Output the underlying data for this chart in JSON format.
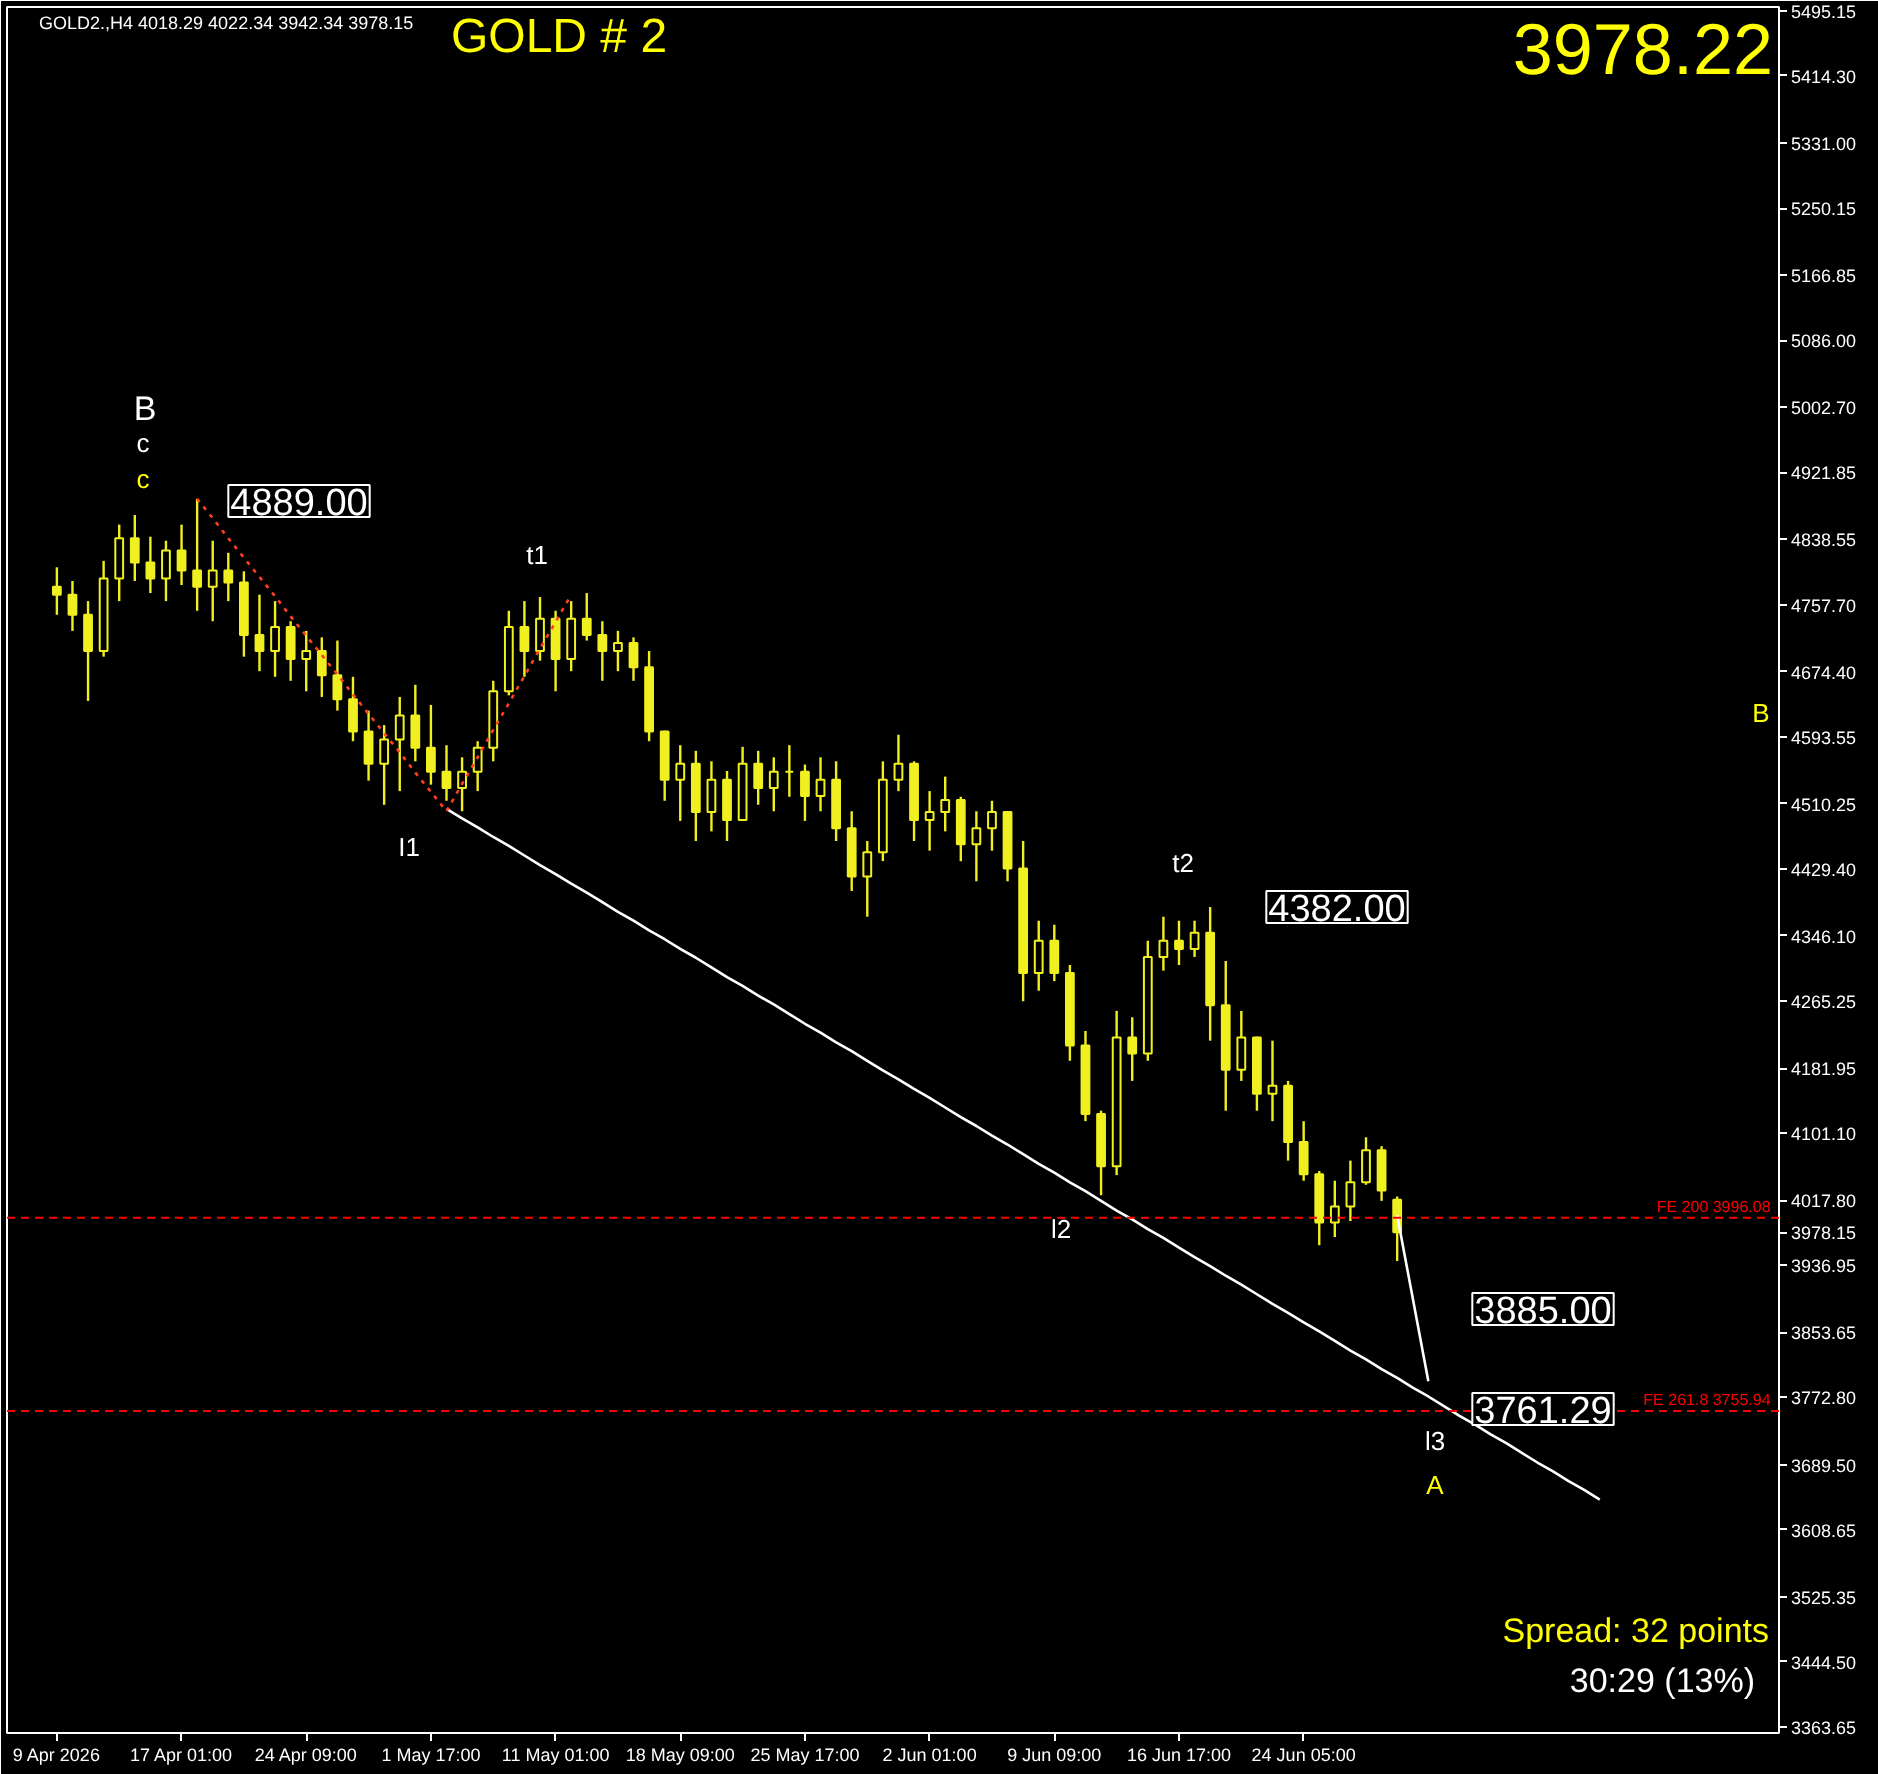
{
  "chart_data": {
    "type": "candlestick",
    "title": "GOLD # 2",
    "categories": [
      "9 Apr 2026",
      null,
      null,
      null,
      null,
      null,
      null,
      null,
      "17 Apr 01:00",
      null,
      null,
      null,
      null,
      null,
      null,
      null,
      "24 Apr 09:00",
      null,
      null,
      null,
      null,
      null,
      null,
      null,
      "1 May 17:00",
      null,
      null,
      null,
      null,
      null,
      null,
      null,
      "11 May 01:00",
      null,
      null,
      null,
      null,
      null,
      null,
      null,
      "18 May 09:00",
      null,
      null,
      null,
      null,
      null,
      null,
      null,
      "25 May 17:00",
      null,
      null,
      null,
      null,
      null,
      null,
      null,
      "2 Jun 01:00",
      null,
      null,
      null,
      null,
      null,
      null,
      null,
      "9 Jun 09:00",
      null,
      null,
      null,
      null,
      null,
      null,
      null,
      "16 Jun 17:00",
      null,
      null,
      null,
      null,
      null,
      null,
      null,
      "24 Jun 05:00",
      null,
      null,
      null,
      null,
      null,
      null,
      null,
      null,
      null,
      null,
      null,
      null,
      null,
      null,
      null,
      null,
      null,
      null,
      null,
      null,
      null,
      null,
      null,
      null,
      null,
      null,
      null,
      null,
      null,
      null
    ],
    "ohlc": [
      [
        4780,
        4804,
        4745,
        4770
      ],
      [
        4770,
        4787,
        4725,
        4745
      ],
      [
        4745,
        4762,
        4638,
        4700
      ],
      [
        4700,
        4812,
        4693,
        4790
      ],
      [
        4790,
        4857,
        4762,
        4840
      ],
      [
        4840,
        4869,
        4787,
        4810
      ],
      [
        4810,
        4842,
        4772,
        4790
      ],
      [
        4790,
        4837,
        4762,
        4825
      ],
      [
        4825,
        4857,
        4782,
        4800
      ],
      [
        4800,
        4889,
        4750,
        4780
      ],
      [
        4780,
        4837,
        4737,
        4800
      ],
      [
        4800,
        4822,
        4762,
        4785
      ],
      [
        4785,
        4799,
        4693,
        4720
      ],
      [
        4720,
        4770,
        4675,
        4700
      ],
      [
        4700,
        4762,
        4668,
        4730
      ],
      [
        4730,
        4737,
        4663,
        4690
      ],
      [
        4690,
        4725,
        4650,
        4700
      ],
      [
        4700,
        4717,
        4643,
        4670
      ],
      [
        4670,
        4713,
        4626,
        4640
      ],
      [
        4640,
        4668,
        4588,
        4600
      ],
      [
        4600,
        4626,
        4539,
        4560
      ],
      [
        4560,
        4608,
        4509,
        4590
      ],
      [
        4590,
        4643,
        4526,
        4620
      ],
      [
        4620,
        4658,
        4563,
        4580
      ],
      [
        4580,
        4633,
        4534,
        4550
      ],
      [
        4550,
        4583,
        4514,
        4530
      ],
      [
        4530,
        4568,
        4501,
        4550
      ],
      [
        4550,
        4588,
        4526,
        4580
      ],
      [
        4580,
        4663,
        4563,
        4650
      ],
      [
        4650,
        4750,
        4645,
        4730
      ],
      [
        4730,
        4762,
        4668,
        4700
      ],
      [
        4700,
        4767,
        4688,
        4740
      ],
      [
        4740,
        4750,
        4650,
        4690
      ],
      [
        4690,
        4762,
        4675,
        4740
      ],
      [
        4740,
        4772,
        4713,
        4720
      ],
      [
        4720,
        4737,
        4663,
        4700
      ],
      [
        4700,
        4725,
        4675,
        4710
      ],
      [
        4710,
        4717,
        4663,
        4680
      ],
      [
        4680,
        4700,
        4588,
        4600
      ],
      [
        4600,
        4601,
        4514,
        4540
      ],
      [
        4540,
        4583,
        4489,
        4560
      ],
      [
        4560,
        4576,
        4464,
        4500
      ],
      [
        4500,
        4563,
        4476,
        4540
      ],
      [
        4540,
        4551,
        4464,
        4490
      ],
      [
        4490,
        4581,
        4489,
        4560
      ],
      [
        4560,
        4576,
        4509,
        4530
      ],
      [
        4530,
        4568,
        4501,
        4550
      ],
      [
        4550,
        4583,
        4519,
        4550
      ],
      [
        4550,
        4559,
        4489,
        4520
      ],
      [
        4520,
        4568,
        4501,
        4540
      ],
      [
        4540,
        4563,
        4464,
        4480
      ],
      [
        4480,
        4501,
        4402,
        4420
      ],
      [
        4420,
        4464,
        4370,
        4450
      ],
      [
        4450,
        4563,
        4439,
        4540
      ],
      [
        4540,
        4596,
        4526,
        4560
      ],
      [
        4560,
        4563,
        4464,
        4490
      ],
      [
        4490,
        4526,
        4452,
        4500
      ],
      [
        4500,
        4544,
        4476,
        4515
      ],
      [
        4515,
        4519,
        4439,
        4460
      ],
      [
        4460,
        4501,
        4414,
        4480
      ],
      [
        4480,
        4514,
        4452,
        4500
      ],
      [
        4500,
        4501,
        4414,
        4430
      ],
      [
        4430,
        4464,
        4265,
        4300
      ],
      [
        4300,
        4365,
        4278,
        4340
      ],
      [
        4340,
        4360,
        4290,
        4300
      ],
      [
        4300,
        4310,
        4191,
        4210
      ],
      [
        4210,
        4228,
        4116,
        4125
      ],
      [
        4125,
        4129,
        4024,
        4060
      ],
      [
        4060,
        4253,
        4049,
        4220
      ],
      [
        4220,
        4245,
        4166,
        4200
      ],
      [
        4200,
        4340,
        4191,
        4320
      ],
      [
        4320,
        4370,
        4303,
        4340
      ],
      [
        4340,
        4365,
        4310,
        4330
      ],
      [
        4330,
        4365,
        4320,
        4350
      ],
      [
        4350,
        4382,
        4216,
        4260
      ],
      [
        4260,
        4315,
        4129,
        4180
      ],
      [
        4180,
        4253,
        4166,
        4220
      ],
      [
        4220,
        4221,
        4129,
        4150
      ],
      [
        4150,
        4216,
        4116,
        4160
      ],
      [
        4160,
        4166,
        4067,
        4090
      ],
      [
        4090,
        4116,
        4042,
        4050
      ],
      [
        4050,
        4054,
        3962,
        3990
      ],
      [
        3990,
        4042,
        3972,
        4010
      ],
      [
        4010,
        4067,
        3992,
        4040
      ],
      [
        4040,
        4096,
        4037,
        4080
      ],
      [
        4080,
        4085,
        4017,
        4030
      ],
      [
        4018.29,
        4022.34,
        3942.34,
        3978.15
      ],
      null,
      null,
      null,
      null,
      null,
      null,
      null,
      null,
      null,
      null,
      null,
      null,
      null,
      null,
      null,
      null,
      null,
      null,
      null,
      null,
      null,
      null,
      null,
      null
    ],
    "color": "#f0f020",
    "series": [
      {
        "type": "line",
        "color": "#ffffff",
        "line_style": "solid",
        "values": [
          null,
          null,
          null,
          null,
          null,
          null,
          null,
          null,
          null,
          null,
          null,
          null,
          null,
          null,
          null,
          null,
          null,
          null,
          null,
          null,
          null,
          null,
          null,
          null,
          null,
          4504,
          4492,
          4481,
          4469,
          4458,
          4446,
          4434,
          4423,
          4411,
          4400,
          4388,
          4376,
          4365,
          4353,
          4342,
          4330,
          4319,
          4307,
          4295,
          4284,
          4272,
          4261,
          4249,
          4237,
          4226,
          4214,
          4203,
          4191,
          4179,
          4168,
          4156,
          4145,
          4133,
          4121,
          4110,
          4098,
          4087,
          4075,
          4063,
          4052,
          4040,
          4029,
          4017,
          4005,
          3994,
          3982,
          3971,
          3959,
          3947,
          3936,
          3924,
          3913,
          3901,
          3889,
          3878,
          3866,
          3855,
          3843,
          3831,
          3820,
          3808,
          3797,
          3785,
          3774,
          3762,
          3750,
          3739,
          3727,
          3716,
          3704,
          3692,
          3681,
          3669,
          3658,
          3646,
          null,
          null,
          null,
          null,
          null,
          null,
          null,
          null,
          null,
          null,
          null
        ]
      },
      {
        "type": "line",
        "color": "#ff4020",
        "line_style": "dotted",
        "values": [
          null,
          null,
          null,
          null,
          null,
          null,
          null,
          null,
          null,
          4889,
          4865,
          4840,
          4816,
          4792,
          4768,
          4743,
          4719,
          4695,
          4671,
          4646,
          4622,
          4598,
          4574,
          4549,
          4525,
          4501,
          4535,
          4568,
          4602,
          4635,
          4669,
          4703,
          4736,
          4770,
          null,
          null,
          null,
          null,
          null,
          null,
          null,
          null,
          null,
          null,
          null,
          null,
          null,
          null,
          null,
          null,
          null,
          null,
          null,
          null,
          null,
          null,
          null,
          null,
          null,
          null,
          null,
          null,
          null,
          null,
          null,
          null,
          null,
          null,
          null,
          null,
          null,
          null,
          null,
          null,
          null,
          null,
          null,
          null,
          null,
          null,
          null,
          null,
          null,
          null,
          null,
          null,
          null,
          null,
          null,
          null,
          null,
          null,
          null,
          null,
          null,
          null,
          null,
          null,
          null,
          null,
          null,
          null,
          null,
          null,
          null,
          null,
          null,
          null,
          null,
          null,
          null
        ]
      },
      {
        "type": "line",
        "color": "#ffffff",
        "line_style": "solid",
        "values": [
          null,
          null,
          null,
          null,
          null,
          null,
          null,
          null,
          null,
          null,
          null,
          null,
          null,
          null,
          null,
          null,
          null,
          null,
          null,
          null,
          null,
          null,
          null,
          null,
          null,
          null,
          null,
          null,
          null,
          null,
          null,
          null,
          null,
          null,
          null,
          null,
          null,
          null,
          null,
          null,
          null,
          null,
          null,
          null,
          null,
          null,
          null,
          null,
          null,
          null,
          null,
          null,
          null,
          null,
          null,
          null,
          null,
          null,
          null,
          null,
          null,
          null,
          null,
          null,
          null,
          null,
          null,
          null,
          null,
          null,
          null,
          null,
          null,
          null,
          null,
          null,
          null,
          null,
          null,
          null,
          null,
          null,
          null,
          null,
          null,
          null,
          3999,
          3896,
          3793,
          null,
          null,
          null,
          null,
          null,
          null,
          null,
          null,
          null,
          null,
          null,
          null,
          null,
          null,
          null,
          null,
          null,
          null,
          null,
          null,
          null,
          null
        ]
      }
    ],
    "ylim": [
      3356,
      5500
    ],
    "yticks": [
      5495.15,
      {
        "value": 5414.3,
        "label": "5414.30"
      },
      {
        "value": 5331,
        "label": "5331.00"
      },
      5250.15,
      5166.85,
      {
        "value": 5086,
        "label": "5086.00"
      },
      {
        "value": 5002.7,
        "label": "5002.70"
      },
      4921.85,
      4838.55,
      {
        "value": 4757.7,
        "label": "4757.70"
      },
      {
        "value": 4674.4,
        "label": "4674.40"
      },
      4593.55,
      4510.25,
      {
        "value": 4429.4,
        "label": "4429.40"
      },
      {
        "value": 4346.1,
        "label": "4346.10"
      },
      4265.25,
      4181.95,
      {
        "value": 4101.1,
        "label": "4101.10"
      },
      {
        "value": 4017.8,
        "label": "4017.80"
      },
      3978.15,
      3936.95,
      3853.65,
      {
        "value": 3772.8,
        "label": "3772.80"
      },
      {
        "value": 3689.5,
        "label": "3689.50"
      },
      3608.65,
      3525.35,
      {
        "value": 3444.5,
        "label": "3444.50"
      },
      3363.65
    ],
    "ref_lines": [
      {
        "axis": "y",
        "value": 3996.08,
        "label": "FE 200  3996.08",
        "color": "#ff0000",
        "line_style": "dashed"
      },
      {
        "axis": "y",
        "value": 3755.94,
        "label": "FE 261.8  3755.94",
        "color": "#ff0000",
        "line_style": "dashed"
      }
    ],
    "annotations": [
      "B",
      "c",
      "c",
      "4889.00",
      "t1",
      "I1",
      "t2",
      "4382.00",
      "l2",
      "3885.00",
      "3761.29",
      "l3",
      "A",
      "B",
      "GOLD2.,H4  4018.29 4022.34 3942.34 3978.15",
      "3978.22",
      "Spread: 32 points",
      "30:29 (13%)"
    ],
    "grid": false,
    "marker": "none"
  }
}
